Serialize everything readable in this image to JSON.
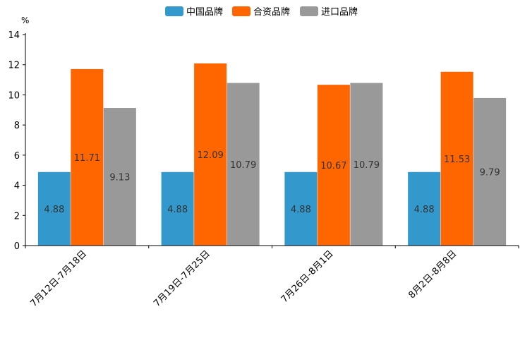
{
  "chart_data": {
    "type": "bar",
    "title": "",
    "ylabel": "%",
    "xlabel": "",
    "ylim": [
      0,
      14
    ],
    "yticks": [
      0,
      2,
      4,
      6,
      8,
      10,
      12,
      14
    ],
    "grid": false,
    "legend_position": "top-center",
    "categories": [
      "7月12日-7月18日",
      "7月19日-7月25日",
      "7月26日-8月1日",
      "8月2日-8月8日"
    ],
    "series": [
      {
        "name": "中国品牌",
        "color": "#3399cc",
        "values": [
          4.88,
          4.88,
          4.88,
          4.88
        ]
      },
      {
        "name": "合资品牌",
        "color": "#ff6600",
        "values": [
          11.71,
          12.09,
          10.67,
          11.53
        ]
      },
      {
        "name": "进口品牌",
        "color": "#999999",
        "values": [
          9.13,
          10.79,
          10.79,
          9.79
        ]
      }
    ]
  }
}
